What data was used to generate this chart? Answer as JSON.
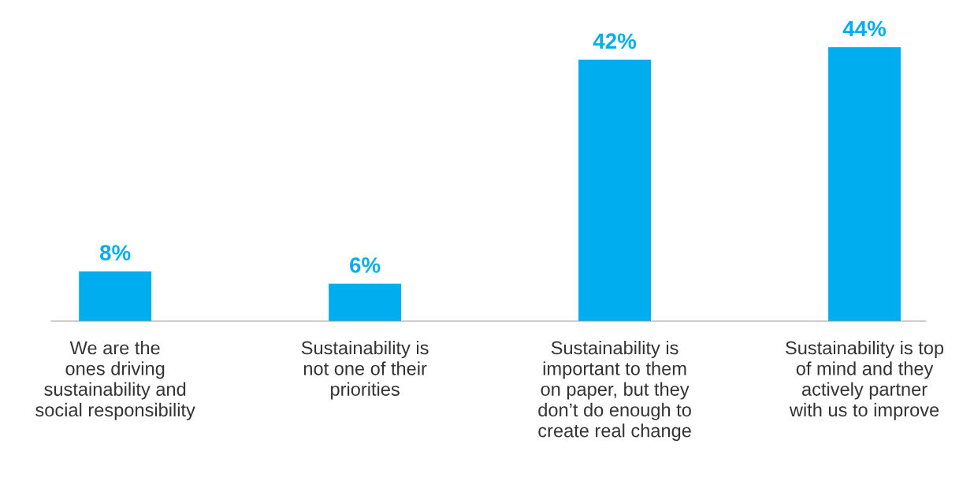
{
  "chart_data": {
    "type": "bar",
    "categories": [
      "We are the\nones driving\nsustainability and\nsocial responsibility",
      "Sustainability is\nnot one of their\npriorities",
      "Sustainability is\nimportant to them\non paper, but they\ndon’t do enough to\ncreate real change",
      "Sustainability is top\nof mind and they\nactively partner\nwith us to improve"
    ],
    "values": [
      8,
      6,
      42,
      44
    ],
    "value_labels": [
      "8%",
      "6%",
      "42%",
      "44%"
    ],
    "color": "#00aeef",
    "grid": false,
    "legend": false
  }
}
